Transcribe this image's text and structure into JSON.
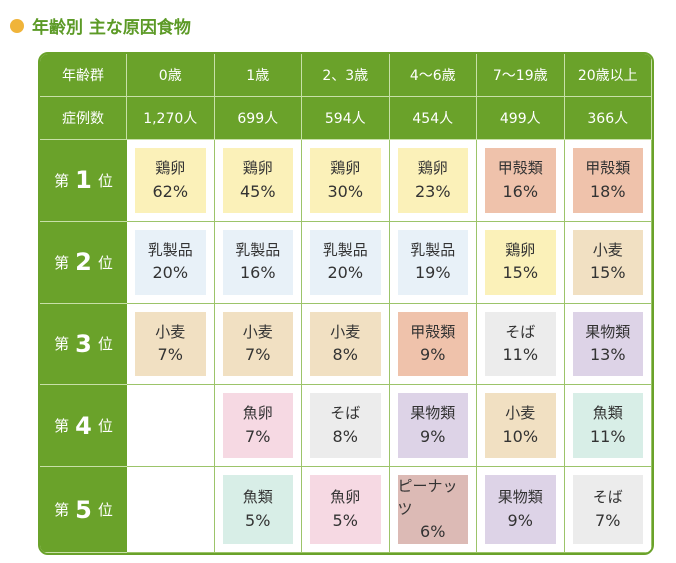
{
  "title": "年齢別 主な原因食物",
  "header": {
    "label": "年齢群",
    "ages": [
      "0歳",
      "1歳",
      "2、3歳",
      "4〜6歳",
      "7〜19歳",
      "20歳以上"
    ]
  },
  "cases": {
    "label": "症例数",
    "values": [
      "1,270人",
      "699人",
      "594人",
      "454人",
      "499人",
      "366人"
    ]
  },
  "colors": {
    "鶏卵": "#fbf1b9",
    "乳製品": "#e8f1f8",
    "小麦": "#f1e0c2",
    "甲殻類": "#efc2ab",
    "そば": "#ececec",
    "果物類": "#ddd3e7",
    "魚卵": "#f6d9e3",
    "魚類": "#d8eee7",
    "ピーナッツ": "#dcbab5"
  },
  "ranks": [
    {
      "pre": "第",
      "num": "1",
      "post": "位",
      "cells": [
        {
          "food": "鶏卵",
          "pct": "62%"
        },
        {
          "food": "鶏卵",
          "pct": "45%"
        },
        {
          "food": "鶏卵",
          "pct": "30%"
        },
        {
          "food": "鶏卵",
          "pct": "23%"
        },
        {
          "food": "甲殻類",
          "pct": "16%"
        },
        {
          "food": "甲殻類",
          "pct": "18%"
        }
      ]
    },
    {
      "pre": "第",
      "num": "2",
      "post": "位",
      "cells": [
        {
          "food": "乳製品",
          "pct": "20%"
        },
        {
          "food": "乳製品",
          "pct": "16%"
        },
        {
          "food": "乳製品",
          "pct": "20%"
        },
        {
          "food": "乳製品",
          "pct": "19%"
        },
        {
          "food": "鶏卵",
          "pct": "15%"
        },
        {
          "food": "小麦",
          "pct": "15%"
        }
      ]
    },
    {
      "pre": "第",
      "num": "3",
      "post": "位",
      "cells": [
        {
          "food": "小麦",
          "pct": "7%"
        },
        {
          "food": "小麦",
          "pct": "7%"
        },
        {
          "food": "小麦",
          "pct": "8%"
        },
        {
          "food": "甲殻類",
          "pct": "9%"
        },
        {
          "food": "そば",
          "pct": "11%"
        },
        {
          "food": "果物類",
          "pct": "13%"
        }
      ]
    },
    {
      "pre": "第",
      "num": "4",
      "post": "位",
      "cells": [
        null,
        {
          "food": "魚卵",
          "pct": "7%"
        },
        {
          "food": "そば",
          "pct": "8%"
        },
        {
          "food": "果物類",
          "pct": "9%"
        },
        {
          "food": "小麦",
          "pct": "10%"
        },
        {
          "food": "魚類",
          "pct": "11%"
        }
      ]
    },
    {
      "pre": "第",
      "num": "5",
      "post": "位",
      "cells": [
        null,
        {
          "food": "魚類",
          "pct": "5%"
        },
        {
          "food": "魚卵",
          "pct": "5%"
        },
        {
          "food": "ピーナッツ",
          "pct": "6%"
        },
        {
          "food": "果物類",
          "pct": "9%"
        },
        {
          "food": "そば",
          "pct": "7%"
        }
      ]
    }
  ]
}
